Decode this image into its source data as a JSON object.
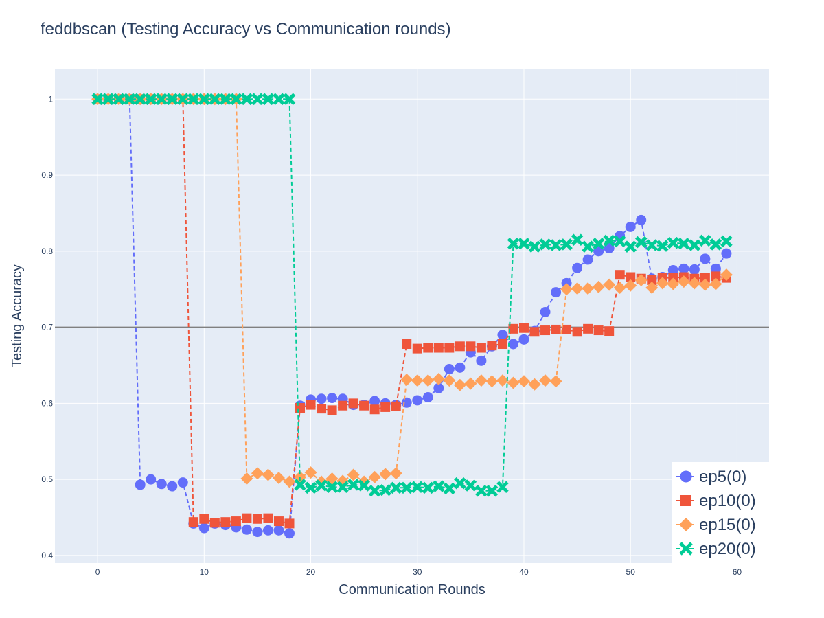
{
  "chart_data": {
    "type": "line",
    "title": "feddbscan (Testing Accuracy vs Communication rounds)",
    "xlabel": "Communication Rounds",
    "ylabel": "Testing Accuracy",
    "xlim": [
      -4,
      63
    ],
    "ylim": [
      0.39,
      1.04
    ],
    "xticks": [
      0,
      10,
      20,
      30,
      40,
      50,
      60
    ],
    "yticks": [
      0.4,
      0.5,
      0.6,
      0.7,
      0.8,
      0.9,
      1
    ],
    "ytick_labels": [
      "0.4",
      "0.5",
      "0.6",
      "0.7",
      "0.8",
      "0.9",
      "1"
    ],
    "grid": true,
    "reference_line": {
      "y": 0.7,
      "color": "#808080"
    },
    "legend_position": "bottom-right",
    "series": [
      {
        "name": "ep5(0)",
        "color": "#636efa",
        "marker": "circle",
        "values": [
          1,
          1,
          1,
          1,
          0.493,
          0.5,
          0.494,
          0.491,
          0.496,
          0.442,
          0.436,
          0.442,
          0.44,
          0.437,
          0.434,
          0.431,
          0.433,
          0.433,
          0.429,
          0.597,
          0.605,
          0.606,
          0.607,
          0.606,
          0.598,
          0.598,
          0.603,
          0.6,
          0.598,
          0.601,
          0.604,
          0.608,
          0.62,
          0.645,
          0.647,
          0.667,
          0.656,
          0.675,
          0.69,
          0.678,
          0.684,
          0.695,
          0.72,
          0.746,
          0.758,
          0.778,
          0.789,
          0.8,
          0.804,
          0.82,
          0.832,
          0.841,
          0.764,
          0.766,
          0.775,
          0.777,
          0.776,
          0.79,
          0.777,
          0.797
        ]
      },
      {
        "name": "ep10(0)",
        "color": "#ef553b",
        "marker": "square",
        "values": [
          1,
          1,
          1,
          1,
          1,
          1,
          1,
          1,
          1,
          0.444,
          0.448,
          0.443,
          0.444,
          0.445,
          0.449,
          0.448,
          0.449,
          0.445,
          0.442,
          0.594,
          0.598,
          0.593,
          0.591,
          0.597,
          0.6,
          0.597,
          0.592,
          0.595,
          0.596,
          0.678,
          0.672,
          0.673,
          0.673,
          0.673,
          0.675,
          0.675,
          0.673,
          0.676,
          0.678,
          0.698,
          0.699,
          0.694,
          0.696,
          0.697,
          0.697,
          0.694,
          0.698,
          0.696,
          0.695,
          0.769,
          0.766,
          0.764,
          0.762,
          0.765,
          0.765,
          0.766,
          0.764,
          0.765,
          0.767,
          0.765
        ]
      },
      {
        "name": "ep15(0)",
        "color": "#ffa15a",
        "marker": "diamond",
        "values": [
          1,
          1,
          1,
          1,
          1,
          1,
          1,
          1,
          1,
          1,
          1,
          1,
          1,
          1,
          0.501,
          0.508,
          0.506,
          0.502,
          0.497,
          0.503,
          0.509,
          0.497,
          0.501,
          0.498,
          0.506,
          0.497,
          0.503,
          0.507,
          0.508,
          0.631,
          0.63,
          0.63,
          0.632,
          0.63,
          0.624,
          0.626,
          0.63,
          0.629,
          0.63,
          0.627,
          0.629,
          0.625,
          0.63,
          0.629,
          0.75,
          0.751,
          0.751,
          0.753,
          0.756,
          0.752,
          0.755,
          0.762,
          0.752,
          0.758,
          0.757,
          0.76,
          0.758,
          0.756,
          0.757,
          0.769
        ]
      },
      {
        "name": "ep20(0)",
        "color": "#00cc96",
        "marker": "x",
        "values": [
          1,
          1,
          1,
          1,
          1,
          1,
          1,
          1,
          1,
          1,
          1,
          1,
          1,
          1,
          1,
          1,
          1,
          1,
          1,
          0.493,
          0.489,
          0.492,
          0.49,
          0.49,
          0.493,
          0.492,
          0.485,
          0.486,
          0.489,
          0.489,
          0.49,
          0.489,
          0.491,
          0.488,
          0.495,
          0.492,
          0.485,
          0.485,
          0.49,
          0.81,
          0.81,
          0.806,
          0.809,
          0.808,
          0.809,
          0.815,
          0.806,
          0.81,
          0.814,
          0.813,
          0.806,
          0.812,
          0.808,
          0.807,
          0.811,
          0.81,
          0.808,
          0.814,
          0.809,
          0.813
        ]
      }
    ]
  }
}
